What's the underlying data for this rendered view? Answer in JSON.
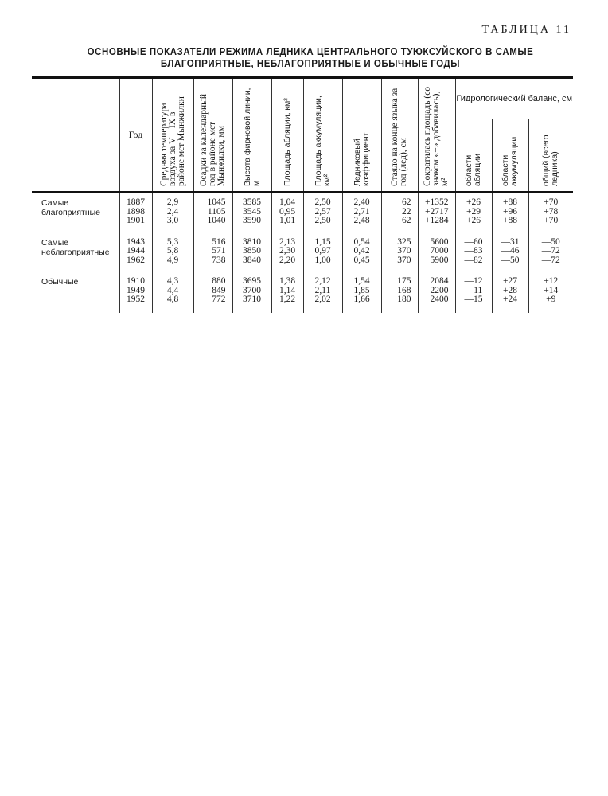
{
  "table_number": "ТАБЛИЦА 11",
  "title_line1": "ОСНОВНЫЕ ПОКАЗАТЕЛИ РЕЖИМА ЛЕДНИКА  ЦЕНТРАЛЬНОГО ТУЮКСУЙСКОГО В САМЫЕ",
  "title_line2": "БЛАГОПРИЯТНЫЕ, НЕБЛАГОПРИЯТНЫЕ И ОБЫЧНЫЕ ГОДЫ",
  "headers": {
    "year": "Год",
    "temp": "Средняя температура воздуха за V—IX в районе мст Мынжилки",
    "precip": "Осадки за календарный год в районе мст Мынжилки, мм",
    "firn": "Высота фирновой линии, м",
    "ablation_area": "Площадь абляции, км²",
    "accum_area": "Площадь аккумуляции, км²",
    "glacier_coef": "Ледниковый коэффициент",
    "melted": "Стаяло на конце языка за год (лед), см",
    "area_change": "Сократилась площадь (со знаком «+» добавилась), м²",
    "hydro_group": "Гидрологический баланс, см",
    "hydro_ablation": "области абляции",
    "hydro_accum": "области аккумуляции",
    "hydro_total": "общий (всего ледника)"
  },
  "groups": [
    {
      "label": "Самые благоприятные",
      "rows": [
        [
          "1887",
          "2,9",
          "1045",
          "3585",
          "1,04",
          "2,50",
          "2,40",
          "62",
          "+1352",
          "+26",
          "+88",
          "+70"
        ],
        [
          "1898",
          "2,4",
          "1105",
          "3545",
          "0,95",
          "2,57",
          "2,71",
          "22",
          "+2717",
          "+29",
          "+96",
          "+78"
        ],
        [
          "1901",
          "3,0",
          "1040",
          "3590",
          "1,01",
          "2,50",
          "2,48",
          "62",
          "+1284",
          "+26",
          "+88",
          "+70"
        ]
      ]
    },
    {
      "label": "Самые неблагоприятные",
      "rows": [
        [
          "1943",
          "5,3",
          "516",
          "3810",
          "2,13",
          "1,15",
          "0,54",
          "325",
          "5600",
          "—60",
          "—31",
          "—50"
        ],
        [
          "1944",
          "5,8",
          "571",
          "3850",
          "2,30",
          "0,97",
          "0,42",
          "370",
          "7000",
          "—83",
          "—46",
          "—72"
        ],
        [
          "1962",
          "4,9",
          "738",
          "3840",
          "2,20",
          "1,00",
          "0,45",
          "370",
          "5900",
          "—82",
          "—50",
          "—72"
        ]
      ]
    },
    {
      "label": "Обычные",
      "rows": [
        [
          "1910",
          "4,3",
          "880",
          "3695",
          "1,38",
          "2,12",
          "1,54",
          "175",
          "2084",
          "—12",
          "+27",
          "+12"
        ],
        [
          "1949",
          "4,4",
          "849",
          "3700",
          "1,14",
          "2,11",
          "1,85",
          "168",
          "2200",
          "—11",
          "+28",
          "+14"
        ],
        [
          "1952",
          "4,8",
          "772",
          "3710",
          "1,22",
          "2,02",
          "1,66",
          "180",
          "2400",
          "—15",
          "+24",
          "+9"
        ]
      ]
    }
  ]
}
